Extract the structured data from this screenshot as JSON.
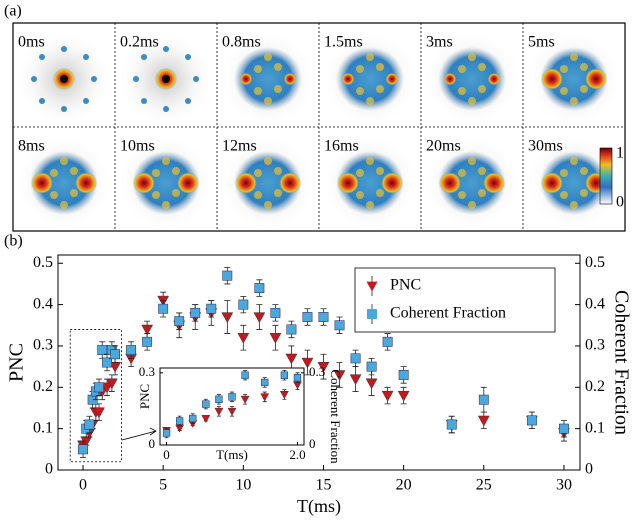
{
  "panel_labels": [
    "(a)",
    "(b)"
  ],
  "image_frames": [
    "0ms",
    "0.2ms",
    "0.8ms",
    "1.5ms",
    "3ms",
    "5ms",
    "8ms",
    "10ms",
    "12ms",
    "16ms",
    "20ms",
    "30ms"
  ],
  "colorbar_ticks": [
    "1",
    "0"
  ],
  "chart_data": [
    {
      "type": "scatter",
      "x_label": "T(ms)",
      "y_label": "PNC",
      "y2_label": "Coherent Fraction",
      "xlim": [
        -1.56,
        31
      ],
      "xticks": [
        0,
        5,
        10,
        15,
        20,
        25,
        30
      ],
      "ylim": [
        0,
        0.52
      ],
      "yticks": [
        0,
        0.1,
        0.2,
        0.3,
        0.4,
        0.5
      ],
      "y2lim": [
        0,
        0.52
      ],
      "y2ticks": [
        0,
        0.1,
        0.2,
        0.3,
        0.4,
        0.5
      ],
      "grid": false,
      "legend": "upper right",
      "series": [
        {
          "name": "PNC",
          "color": "#c8161d",
          "marker": "triangle-down",
          "x": [
            0,
            0.2,
            0.4,
            0.6,
            0.8,
            1.0,
            1.2,
            1.5,
            1.8,
            2.0,
            3,
            4,
            5,
            6,
            7,
            8,
            9,
            10,
            11,
            12,
            13,
            14,
            15,
            16,
            17,
            18,
            19,
            20,
            23,
            25,
            28,
            30
          ],
          "values": [
            0.06,
            0.07,
            0.09,
            0.11,
            0.14,
            0.14,
            0.19,
            0.2,
            0.21,
            0.25,
            0.27,
            0.34,
            0.41,
            0.35,
            0.37,
            0.38,
            0.37,
            0.32,
            0.37,
            0.32,
            0.27,
            0.26,
            0.25,
            0.23,
            0.22,
            0.21,
            0.18,
            0.18,
            0.11,
            0.12,
            0.12,
            0.09
          ],
          "errors": [
            0.01,
            0.01,
            0.01,
            0.01,
            0.02,
            0.02,
            0.02,
            0.02,
            0.02,
            0.02,
            0.02,
            0.02,
            0.02,
            0.03,
            0.03,
            0.03,
            0.04,
            0.03,
            0.03,
            0.03,
            0.03,
            0.03,
            0.03,
            0.03,
            0.03,
            0.03,
            0.02,
            0.02,
            0.02,
            0.02,
            0.02,
            0.02
          ]
        },
        {
          "name": "Coherent Fraction",
          "color": "#4aa8dc",
          "marker": "square",
          "x": [
            0,
            0.2,
            0.4,
            0.6,
            0.8,
            1.0,
            1.2,
            1.5,
            1.8,
            2.0,
            3,
            4,
            5,
            6,
            7,
            8,
            9,
            10,
            11,
            12,
            13,
            14,
            15,
            16,
            17,
            18,
            19,
            20,
            23,
            25,
            28,
            30
          ],
          "values": [
            0.05,
            0.1,
            0.11,
            0.17,
            0.19,
            0.2,
            0.29,
            0.26,
            0.29,
            0.28,
            0.29,
            0.31,
            0.39,
            0.36,
            0.38,
            0.39,
            0.47,
            0.4,
            0.44,
            0.38,
            0.34,
            0.37,
            0.37,
            0.35,
            0.27,
            0.25,
            0.31,
            0.23,
            0.11,
            0.17,
            0.12,
            0.1
          ],
          "errors": [
            0.02,
            0.02,
            0.02,
            0.02,
            0.02,
            0.02,
            0.02,
            0.02,
            0.02,
            0.02,
            0.02,
            0.02,
            0.02,
            0.02,
            0.02,
            0.02,
            0.02,
            0.02,
            0.02,
            0.02,
            0.02,
            0.02,
            0.02,
            0.02,
            0.02,
            0.02,
            0.02,
            0.02,
            0.02,
            0.03,
            0.02,
            0.02
          ]
        }
      ]
    },
    {
      "type": "scatter",
      "x_label": "T(ms)",
      "y_label": "PNC",
      "y2_label": "Coherent Fraction",
      "xlim": [
        -0.1,
        2.1
      ],
      "xticks": [
        0,
        {
          "value": 2,
          "label": "2.0"
        }
      ],
      "ylim": [
        0,
        0.32
      ],
      "yticks": [
        0,
        0.3
      ],
      "y2lim": [
        0,
        0.32
      ],
      "y2ticks": [
        0,
        0.3
      ],
      "grid": false,
      "series": [
        {
          "name": "PNC",
          "color": "#c8161d",
          "marker": "triangle-down",
          "x": [
            0,
            0.2,
            0.4,
            0.6,
            0.8,
            1.0,
            1.2,
            1.5,
            1.8,
            2.0
          ],
          "values": [
            0.06,
            0.07,
            0.09,
            0.11,
            0.14,
            0.14,
            0.19,
            0.2,
            0.21,
            0.25
          ],
          "errors": [
            0.01,
            0.01,
            0.01,
            0.01,
            0.02,
            0.02,
            0.02,
            0.02,
            0.02,
            0.02
          ]
        },
        {
          "name": "Coherent Fraction",
          "color": "#4aa8dc",
          "marker": "square",
          "x": [
            0,
            0.2,
            0.4,
            0.6,
            0.8,
            1.0,
            1.2,
            1.5,
            1.8,
            2.0
          ],
          "values": [
            0.05,
            0.1,
            0.11,
            0.17,
            0.19,
            0.2,
            0.29,
            0.26,
            0.29,
            0.28
          ],
          "errors": [
            0.02,
            0.02,
            0.02,
            0.02,
            0.02,
            0.02,
            0.02,
            0.02,
            0.02,
            0.02
          ]
        }
      ]
    }
  ]
}
